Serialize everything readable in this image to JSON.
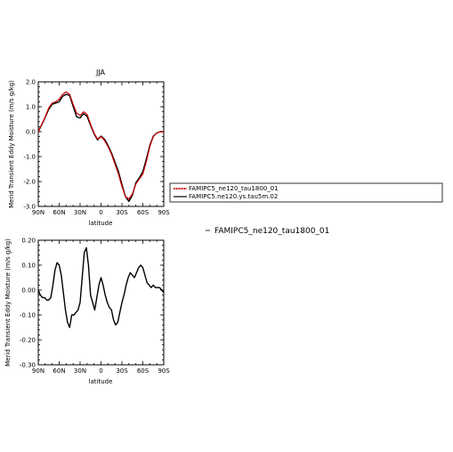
{
  "chart_data": [
    {
      "type": "line",
      "title": "JJA",
      "xlabel": "latitude",
      "ylabel": "Merid Transient Eddy Moisture (m/s g/kg)",
      "x_ticks": [
        "90N",
        "60N",
        "30N",
        "0",
        "30S",
        "60S",
        "90S"
      ],
      "xlim": [
        90,
        -90
      ],
      "ylim": [
        -3.0,
        2.0
      ],
      "y_ticks": [
        "-3.0",
        "-2.0",
        "-1.0",
        "0.0",
        "1.0",
        "2.0"
      ],
      "legend_placement": "right",
      "series": [
        {
          "name": "FAMIPC5_ne120_tau1800_01",
          "color": "#cc0000",
          "x": [
            90,
            85,
            80,
            75,
            70,
            65,
            60,
            55,
            50,
            45,
            40,
            35,
            30,
            25,
            20,
            15,
            10,
            5,
            0,
            -5,
            -10,
            -15,
            -20,
            -25,
            -30,
            -35,
            -40,
            -45,
            -50,
            -55,
            -60,
            -65,
            -70,
            -75,
            -80,
            -85,
            -90
          ],
          "values": [
            0.0,
            0.3,
            0.6,
            0.95,
            1.15,
            1.2,
            1.3,
            1.5,
            1.6,
            1.5,
            1.1,
            0.75,
            0.65,
            0.8,
            0.7,
            0.3,
            -0.05,
            -0.3,
            -0.2,
            -0.35,
            -0.6,
            -0.9,
            -1.3,
            -1.7,
            -2.2,
            -2.6,
            -2.7,
            -2.5,
            -2.1,
            -1.9,
            -1.7,
            -1.2,
            -0.6,
            -0.2,
            -0.05,
            0.0,
            0.0
          ]
        },
        {
          "name": "FAMIPC5.ne120.ys.tau5m.02",
          "color": "#000000",
          "x": [
            90,
            85,
            80,
            75,
            70,
            65,
            60,
            55,
            50,
            45,
            40,
            35,
            30,
            25,
            20,
            15,
            10,
            5,
            0,
            -5,
            -10,
            -15,
            -20,
            -25,
            -30,
            -35,
            -40,
            -45,
            -50,
            -55,
            -60,
            -65,
            -70,
            -75,
            -80,
            -85,
            -90
          ],
          "values": [
            0.0,
            0.28,
            0.58,
            0.9,
            1.1,
            1.15,
            1.2,
            1.42,
            1.5,
            1.45,
            1.02,
            0.6,
            0.55,
            0.72,
            0.62,
            0.25,
            -0.08,
            -0.33,
            -0.18,
            -0.3,
            -0.55,
            -0.85,
            -1.22,
            -1.6,
            -2.12,
            -2.6,
            -2.8,
            -2.55,
            -2.05,
            -1.85,
            -1.6,
            -1.1,
            -0.55,
            -0.18,
            -0.05,
            0.0,
            0.0
          ]
        }
      ]
    },
    {
      "type": "line",
      "title": "",
      "xlabel": "latitude",
      "ylabel": "Merid Transient Eddy Moisture (m/s g/kg)",
      "x_ticks": [
        "90N",
        "60N",
        "30N",
        "0",
        "30S",
        "60S",
        "90S"
      ],
      "xlim": [
        90,
        -90
      ],
      "ylim": [
        -0.3,
        0.2
      ],
      "y_ticks": [
        "-0.30",
        "-0.20",
        "-0.10",
        "0.00",
        "0.10",
        "0.20"
      ],
      "series": [
        {
          "name": "",
          "color": "#000000",
          "x": [
            90,
            87,
            84,
            81,
            78,
            75,
            72,
            69,
            66,
            63,
            60,
            57,
            54,
            51,
            48,
            45,
            42,
            39,
            36,
            33,
            30,
            27,
            24,
            21,
            18,
            15,
            12,
            9,
            6,
            3,
            0,
            -3,
            -6,
            -9,
            -12,
            -15,
            -18,
            -21,
            -24,
            -27,
            -30,
            -33,
            -36,
            -39,
            -42,
            -45,
            -48,
            -51,
            -54,
            -57,
            -60,
            -63,
            -66,
            -69,
            -72,
            -75,
            -78,
            -81,
            -84,
            -87,
            -90
          ],
          "values": [
            0.0,
            -0.02,
            -0.03,
            -0.03,
            -0.04,
            -0.04,
            -0.03,
            0.02,
            0.08,
            0.11,
            0.1,
            0.06,
            -0.01,
            -0.08,
            -0.13,
            -0.15,
            -0.1,
            -0.1,
            -0.09,
            -0.08,
            -0.05,
            0.05,
            0.15,
            0.17,
            0.1,
            -0.02,
            -0.05,
            -0.08,
            -0.03,
            0.02,
            0.05,
            0.02,
            -0.02,
            -0.05,
            -0.07,
            -0.08,
            -0.12,
            -0.14,
            -0.13,
            -0.09,
            -0.05,
            -0.02,
            0.02,
            0.05,
            0.07,
            0.06,
            0.05,
            0.07,
            0.09,
            0.1,
            0.09,
            0.06,
            0.03,
            0.02,
            0.01,
            0.02,
            0.01,
            0.01,
            0.01,
            0.0,
            -0.01
          ]
        }
      ]
    }
  ],
  "side_note": "FAMIPC5_ne120_tau1800_01"
}
